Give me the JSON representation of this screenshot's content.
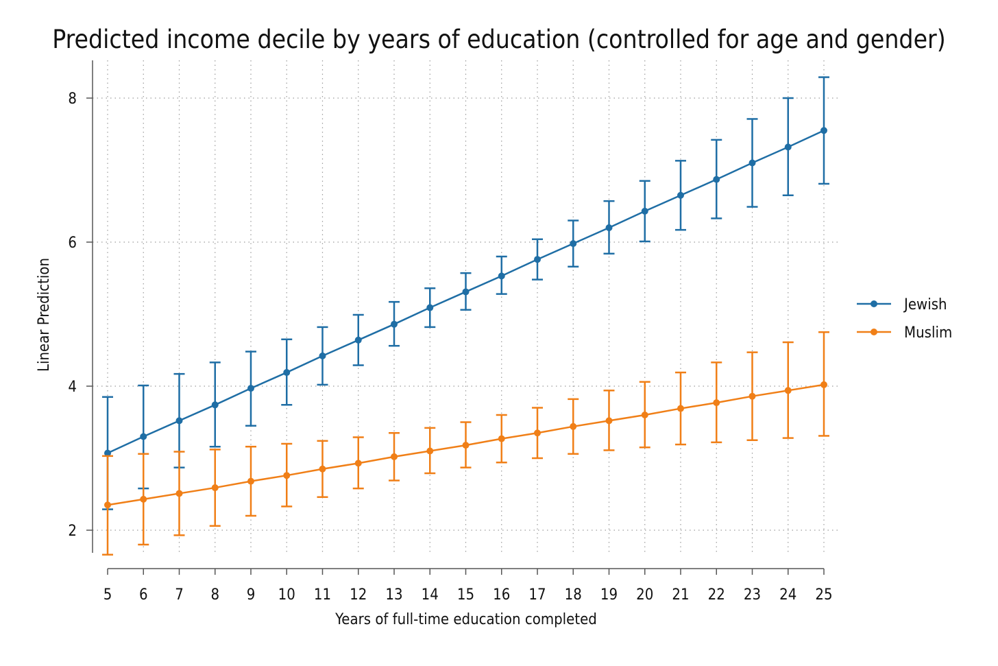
{
  "chart_data": {
    "type": "line",
    "title": "Predicted income decile by years of education (controlled for age and gender)",
    "xlabel": "Years of full-time education completed",
    "ylabel": "Linear Prediction",
    "x": [
      5,
      6,
      7,
      8,
      9,
      10,
      11,
      12,
      13,
      14,
      15,
      16,
      17,
      18,
      19,
      20,
      21,
      22,
      23,
      24,
      25
    ],
    "xlim": [
      5,
      25
    ],
    "ylim": [
      1.45,
      8.5
    ],
    "yticks": [
      2,
      4,
      6,
      8
    ],
    "grid": true,
    "legend_position": "right",
    "series": [
      {
        "name": "Jewish",
        "color": "#1f6ea5",
        "values": [
          3.07,
          3.3,
          3.52,
          3.74,
          3.97,
          4.19,
          4.42,
          4.64,
          4.86,
          5.09,
          5.31,
          5.53,
          5.76,
          5.98,
          6.2,
          6.43,
          6.65,
          6.87,
          7.1,
          7.32,
          7.55
        ],
        "ci_lower": [
          2.29,
          2.58,
          2.87,
          3.16,
          3.45,
          3.74,
          4.02,
          4.29,
          4.56,
          4.82,
          5.06,
          5.28,
          5.48,
          5.66,
          5.84,
          6.01,
          6.17,
          6.33,
          6.49,
          6.65,
          6.81
        ],
        "ci_upper": [
          3.85,
          4.01,
          4.17,
          4.33,
          4.48,
          4.65,
          4.82,
          4.99,
          5.17,
          5.36,
          5.57,
          5.8,
          6.04,
          6.3,
          6.57,
          6.85,
          7.13,
          7.42,
          7.71,
          8.0,
          8.29
        ]
      },
      {
        "name": "Muslim",
        "color": "#f07f17",
        "values": [
          2.35,
          2.43,
          2.51,
          2.59,
          2.68,
          2.76,
          2.85,
          2.93,
          3.02,
          3.1,
          3.18,
          3.27,
          3.35,
          3.44,
          3.52,
          3.6,
          3.69,
          3.77,
          3.86,
          3.94,
          4.02
        ],
        "ci_lower": [
          1.66,
          1.8,
          1.93,
          2.06,
          2.2,
          2.33,
          2.46,
          2.58,
          2.69,
          2.79,
          2.87,
          2.94,
          3.0,
          3.06,
          3.11,
          3.15,
          3.19,
          3.22,
          3.25,
          3.28,
          3.31
        ],
        "ci_upper": [
          3.03,
          3.06,
          3.09,
          3.12,
          3.16,
          3.2,
          3.24,
          3.29,
          3.35,
          3.42,
          3.5,
          3.6,
          3.7,
          3.82,
          3.94,
          4.06,
          4.19,
          4.33,
          4.47,
          4.61,
          4.75
        ]
      }
    ]
  }
}
